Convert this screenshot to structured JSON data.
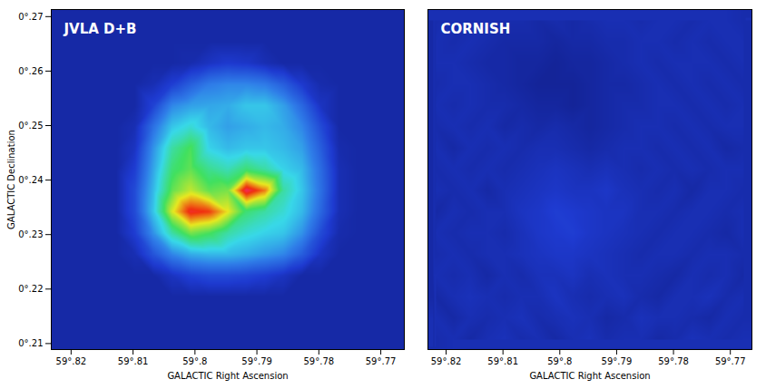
{
  "chart_data": [
    {
      "type": "heatmap",
      "title": "JVLA D+B",
      "x_label": "GALACTIC Right Ascension",
      "y_label": "GALACTIC Declination",
      "xlim": [
        59.8232,
        59.7662
      ],
      "xticks": [
        {
          "value": 59.82,
          "label": "59°.82"
        },
        {
          "value": 59.81,
          "label": "59°.81"
        },
        {
          "value": 59.8,
          "label": "59°.8"
        },
        {
          "value": 59.79,
          "label": "59°.79"
        },
        {
          "value": 59.78,
          "label": "59°.78"
        },
        {
          "value": 59.77,
          "label": "59°.77"
        }
      ],
      "ylim": [
        0.2089,
        0.2713
      ],
      "yticks": [
        {
          "value": 0.21,
          "label": "0°.21"
        },
        {
          "value": 0.22,
          "label": "0°.22"
        },
        {
          "value": 0.23,
          "label": "0°.23"
        },
        {
          "value": 0.24,
          "label": "0°.24"
        },
        {
          "value": 0.25,
          "label": "0°.25"
        },
        {
          "value": 0.26,
          "label": "0°.26"
        },
        {
          "value": 0.27,
          "label": "0°.27"
        }
      ],
      "tick_labels": true,
      "zlim": [
        0,
        1
      ],
      "colors": [
        "#0c1470",
        "#1e3ad0",
        "#2f7de8",
        "#38d8e8",
        "#40e060",
        "#e8e820",
        "#f03010",
        "#f020c0"
      ],
      "x": [
        59.8217,
        59.8187,
        59.8157,
        59.8127,
        59.8097,
        59.8067,
        59.8037,
        59.8007,
        59.7977,
        59.7947,
        59.7917,
        59.7887,
        59.7857,
        59.7827,
        59.7797,
        59.7767,
        59.7737,
        59.7707,
        59.7677
      ],
      "y": [
        0.2108,
        0.2147,
        0.2186,
        0.2225,
        0.2264,
        0.2303,
        0.2342,
        0.2381,
        0.242,
        0.2459,
        0.2498,
        0.2537,
        0.2576,
        0.2615,
        0.2654,
        0.2693
      ],
      "cells": [
        [
          0.08,
          0.08,
          0.08,
          0.08,
          0.08,
          0.08,
          0.08,
          0.08,
          0.08,
          0.08,
          0.08,
          0.08,
          0.08,
          0.08,
          0.08,
          0.08,
          0.08,
          0.08,
          0.08
        ],
        [
          0.08,
          0.08,
          0.08,
          0.08,
          0.08,
          0.08,
          0.08,
          0.08,
          0.08,
          0.08,
          0.08,
          0.08,
          0.08,
          0.08,
          0.08,
          0.08,
          0.08,
          0.08,
          0.08
        ],
        [
          0.08,
          0.08,
          0.08,
          0.08,
          0.08,
          0.08,
          0.08,
          0.08,
          0.08,
          0.08,
          0.08,
          0.08,
          0.08,
          0.08,
          0.08,
          0.08,
          0.08,
          0.08,
          0.08
        ],
        [
          0.08,
          0.08,
          0.08,
          0.08,
          0.08,
          0.08,
          0.12,
          0.16,
          0.18,
          0.18,
          0.17,
          0.15,
          0.12,
          0.08,
          0.08,
          0.08,
          0.08,
          0.08,
          0.08
        ],
        [
          0.08,
          0.08,
          0.08,
          0.08,
          0.1,
          0.2,
          0.3,
          0.36,
          0.38,
          0.38,
          0.36,
          0.33,
          0.3,
          0.22,
          0.12,
          0.08,
          0.08,
          0.08,
          0.08
        ],
        [
          0.08,
          0.08,
          0.08,
          0.08,
          0.15,
          0.32,
          0.5,
          0.62,
          0.58,
          0.5,
          0.45,
          0.42,
          0.4,
          0.32,
          0.18,
          0.09,
          0.08,
          0.08,
          0.08
        ],
        [
          0.08,
          0.08,
          0.08,
          0.08,
          0.18,
          0.4,
          0.7,
          0.88,
          0.85,
          0.72,
          0.55,
          0.5,
          0.45,
          0.38,
          0.24,
          0.1,
          0.08,
          0.08,
          0.08
        ],
        [
          0.08,
          0.08,
          0.08,
          0.08,
          0.18,
          0.38,
          0.6,
          0.68,
          0.6,
          0.62,
          0.92,
          0.8,
          0.5,
          0.4,
          0.26,
          0.1,
          0.08,
          0.08,
          0.08
        ],
        [
          0.08,
          0.08,
          0.08,
          0.08,
          0.15,
          0.35,
          0.55,
          0.6,
          0.52,
          0.48,
          0.55,
          0.5,
          0.42,
          0.38,
          0.25,
          0.1,
          0.08,
          0.08,
          0.08
        ],
        [
          0.08,
          0.08,
          0.08,
          0.08,
          0.12,
          0.32,
          0.5,
          0.58,
          0.42,
          0.38,
          0.4,
          0.4,
          0.38,
          0.34,
          0.22,
          0.09,
          0.08,
          0.08,
          0.08
        ],
        [
          0.08,
          0.08,
          0.08,
          0.08,
          0.1,
          0.26,
          0.4,
          0.45,
          0.38,
          0.34,
          0.36,
          0.38,
          0.36,
          0.3,
          0.18,
          0.08,
          0.08,
          0.08,
          0.08
        ],
        [
          0.08,
          0.08,
          0.08,
          0.08,
          0.08,
          0.16,
          0.3,
          0.34,
          0.35,
          0.36,
          0.4,
          0.4,
          0.34,
          0.24,
          0.12,
          0.08,
          0.08,
          0.08,
          0.08
        ],
        [
          0.08,
          0.08,
          0.08,
          0.08,
          0.08,
          0.1,
          0.15,
          0.22,
          0.28,
          0.3,
          0.3,
          0.28,
          0.22,
          0.14,
          0.09,
          0.08,
          0.08,
          0.08,
          0.08
        ],
        [
          0.08,
          0.08,
          0.08,
          0.08,
          0.08,
          0.08,
          0.08,
          0.09,
          0.12,
          0.14,
          0.13,
          0.1,
          0.08,
          0.08,
          0.08,
          0.08,
          0.08,
          0.08,
          0.08
        ],
        [
          0.08,
          0.08,
          0.08,
          0.08,
          0.08,
          0.08,
          0.08,
          0.08,
          0.08,
          0.08,
          0.08,
          0.08,
          0.08,
          0.08,
          0.08,
          0.08,
          0.08,
          0.08,
          0.08
        ],
        [
          0.08,
          0.08,
          0.08,
          0.08,
          0.08,
          0.08,
          0.08,
          0.08,
          0.08,
          0.08,
          0.08,
          0.08,
          0.08,
          0.08,
          0.08,
          0.08,
          0.08,
          0.08,
          0.08
        ]
      ]
    },
    {
      "type": "heatmap",
      "title": "CORNISH",
      "x_label": "GALACTIC Right Ascension",
      "xlim": [
        59.8232,
        59.7662
      ],
      "xticks": [
        {
          "value": 59.82,
          "label": "59°.82"
        },
        {
          "value": 59.81,
          "label": "59°.81"
        },
        {
          "value": 59.8,
          "label": "59°.8"
        },
        {
          "value": 59.79,
          "label": "59°.79"
        },
        {
          "value": 59.78,
          "label": "59°.78"
        },
        {
          "value": 59.77,
          "label": "59°.77"
        }
      ],
      "ylim": [
        0.2089,
        0.2713
      ],
      "tick_labels": "x",
      "zlim": [
        0,
        1
      ],
      "colors": [
        "#0c1470",
        "#1e3ad0",
        "#2f7de8",
        "#38d8e8",
        "#40e060",
        "#e8e820",
        "#f03010",
        "#f020c0"
      ],
      "x": [
        59.8217,
        59.8187,
        59.8157,
        59.8127,
        59.8097,
        59.8067,
        59.8037,
        59.8007,
        59.7977,
        59.7947,
        59.7917,
        59.7887,
        59.7857,
        59.7827,
        59.7797,
        59.7767,
        59.7737,
        59.7707,
        59.7677
      ],
      "y": [
        0.2108,
        0.2147,
        0.2186,
        0.2225,
        0.2264,
        0.2303,
        0.2342,
        0.2381,
        0.242,
        0.2459,
        0.2498,
        0.2537,
        0.2576,
        0.2615,
        0.2654,
        0.2693
      ],
      "cells": [
        [
          0.09,
          0.1,
          0.08,
          0.1,
          0.11,
          0.09,
          0.1,
          0.08,
          0.1,
          0.11,
          0.09,
          0.1,
          0.1,
          0.08,
          0.09,
          0.11,
          0.1,
          0.09,
          0.1
        ],
        [
          0.1,
          0.08,
          0.1,
          0.09,
          0.1,
          0.11,
          0.09,
          0.1,
          0.11,
          0.1,
          0.08,
          0.09,
          0.11,
          0.1,
          0.1,
          0.09,
          0.08,
          0.1,
          0.09
        ],
        [
          0.08,
          0.1,
          0.11,
          0.1,
          0.09,
          0.1,
          0.1,
          0.12,
          0.1,
          0.09,
          0.1,
          0.11,
          0.09,
          0.08,
          0.1,
          0.1,
          0.11,
          0.09,
          0.1
        ],
        [
          0.1,
          0.09,
          0.1,
          0.08,
          0.1,
          0.09,
          0.11,
          0.11,
          0.12,
          0.1,
          0.11,
          0.1,
          0.1,
          0.09,
          0.08,
          0.1,
          0.09,
          0.1,
          0.08
        ],
        [
          0.09,
          0.1,
          0.09,
          0.1,
          0.1,
          0.11,
          0.12,
          0.13,
          0.13,
          0.12,
          0.11,
          0.1,
          0.09,
          0.1,
          0.1,
          0.09,
          0.1,
          0.1,
          0.09
        ],
        [
          0.1,
          0.09,
          0.1,
          0.1,
          0.09,
          0.11,
          0.13,
          0.14,
          0.15,
          0.13,
          0.12,
          0.11,
          0.1,
          0.09,
          0.1,
          0.1,
          0.09,
          0.08,
          0.1
        ],
        [
          0.08,
          0.1,
          0.09,
          0.1,
          0.1,
          0.12,
          0.13,
          0.15,
          0.14,
          0.13,
          0.12,
          0.12,
          0.1,
          0.1,
          0.09,
          0.1,
          0.1,
          0.09,
          0.1
        ],
        [
          0.1,
          0.09,
          0.1,
          0.08,
          0.1,
          0.11,
          0.12,
          0.13,
          0.12,
          0.12,
          0.13,
          0.11,
          0.1,
          0.09,
          0.1,
          0.08,
          0.1,
          0.1,
          0.09
        ],
        [
          0.09,
          0.1,
          0.09,
          0.1,
          0.09,
          0.1,
          0.11,
          0.12,
          0.11,
          0.1,
          0.11,
          0.1,
          0.09,
          0.1,
          0.09,
          0.1,
          0.09,
          0.1,
          0.1
        ],
        [
          0.1,
          0.08,
          0.1,
          0.09,
          0.1,
          0.09,
          0.1,
          0.1,
          0.09,
          0.08,
          0.09,
          0.1,
          0.1,
          0.09,
          0.1,
          0.09,
          0.1,
          0.08,
          0.09
        ],
        [
          0.09,
          0.1,
          0.09,
          0.1,
          0.08,
          0.09,
          0.08,
          0.09,
          0.08,
          0.07,
          0.08,
          0.09,
          0.1,
          0.1,
          0.09,
          0.1,
          0.09,
          0.1,
          0.1
        ],
        [
          0.1,
          0.09,
          0.1,
          0.09,
          0.09,
          0.08,
          0.07,
          0.07,
          0.06,
          0.07,
          0.08,
          0.09,
          0.09,
          0.1,
          0.1,
          0.09,
          0.1,
          0.09,
          0.1
        ],
        [
          0.09,
          0.1,
          0.1,
          0.09,
          0.08,
          0.07,
          0.06,
          0.06,
          0.06,
          0.07,
          0.08,
          0.08,
          0.09,
          0.1,
          0.09,
          0.1,
          0.09,
          0.1,
          0.09
        ],
        [
          0.1,
          0.1,
          0.09,
          0.08,
          0.08,
          0.07,
          0.07,
          0.06,
          0.07,
          0.07,
          0.08,
          0.09,
          0.1,
          0.09,
          0.1,
          0.1,
          0.1,
          0.09,
          0.1
        ],
        [
          0.1,
          0.09,
          0.1,
          0.09,
          0.08,
          0.08,
          0.08,
          0.07,
          0.08,
          0.08,
          0.09,
          0.09,
          0.1,
          0.1,
          0.09,
          0.1,
          0.09,
          0.1,
          0.1
        ],
        [
          0.09,
          0.1,
          0.09,
          0.1,
          0.09,
          0.09,
          0.08,
          0.09,
          0.08,
          0.09,
          0.1,
          0.1,
          0.09,
          0.1,
          0.1,
          0.09,
          0.1,
          0.1,
          0.09
        ]
      ]
    }
  ]
}
